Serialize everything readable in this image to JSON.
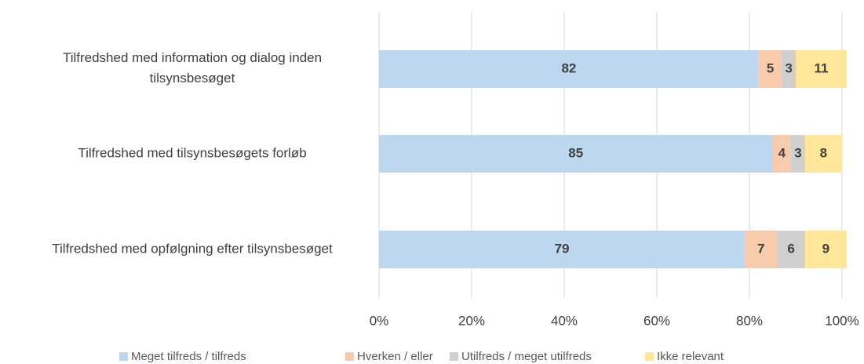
{
  "chart_data": {
    "type": "bar",
    "orientation": "horizontal",
    "stacked": true,
    "categories": [
      "Tilfredshed med information og dialog inden tilsynsbesøget",
      "Tilfredshed med tilsynsbesøgets forløb",
      "Tilfredshed med opfølgning efter tilsynsbesøget"
    ],
    "series": [
      {
        "name": "Meget tilfreds / tilfreds",
        "color": "#bdd7ee",
        "values": [
          82,
          85,
          79
        ]
      },
      {
        "name": "Hverken / eller",
        "color": "#f8cbad",
        "values": [
          5,
          4,
          7
        ]
      },
      {
        "name": "Utilfreds / meget utilfreds",
        "color": "#d0cece",
        "values": [
          3,
          3,
          6
        ]
      },
      {
        "name": "Ikke relevant",
        "color": "#ffe699",
        "values": [
          11,
          8,
          9
        ]
      }
    ],
    "xlim": [
      0,
      100
    ],
    "xticks": [
      {
        "value": 0,
        "label": "0%"
      },
      {
        "value": 20,
        "label": "20%"
      },
      {
        "value": 40,
        "label": "40%"
      },
      {
        "value": 60,
        "label": "60%"
      },
      {
        "value": 80,
        "label": "80%"
      },
      {
        "value": 100,
        "label": "100%"
      }
    ],
    "grid": true,
    "legend": "bottom"
  }
}
